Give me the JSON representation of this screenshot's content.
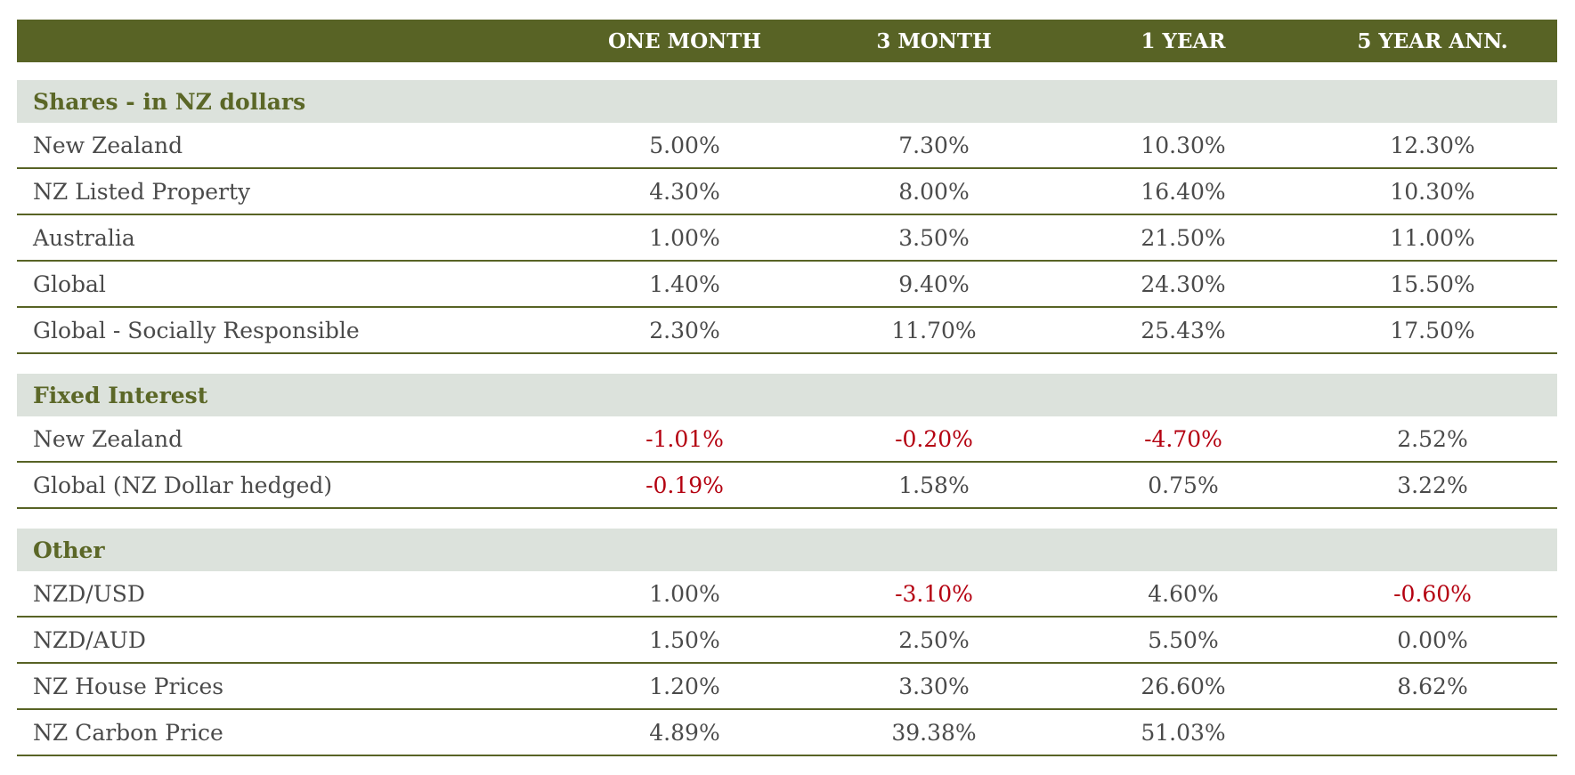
{
  "header": {
    "label": "",
    "columns": [
      "ONE MONTH",
      "3 MONTH",
      "1 YEAR",
      "5 YEAR ANN."
    ]
  },
  "sections": [
    {
      "title": "Shares - in NZ dollars",
      "rows": [
        {
          "label": "New Zealand",
          "values": [
            "5.00%",
            "7.30%",
            "10.30%",
            "12.30%"
          ]
        },
        {
          "label": "NZ Listed Property",
          "values": [
            "4.30%",
            "8.00%",
            "16.40%",
            "10.30%"
          ]
        },
        {
          "label": "Australia",
          "values": [
            "1.00%",
            "3.50%",
            "21.50%",
            "11.00%"
          ]
        },
        {
          "label": "Global",
          "values": [
            "1.40%",
            "9.40%",
            "24.30%",
            "15.50%"
          ]
        },
        {
          "label": "Global - Socially Responsible",
          "values": [
            "2.30%",
            "11.70%",
            "25.43%",
            "17.50%"
          ]
        }
      ]
    },
    {
      "title": "Fixed Interest",
      "rows": [
        {
          "label": "New Zealand",
          "values": [
            "-1.01%",
            "-0.20%",
            "-4.70%",
            "2.52%"
          ]
        },
        {
          "label": "Global (NZ Dollar hedged)",
          "values": [
            "-0.19%",
            "1.58%",
            "0.75%",
            "3.22%"
          ]
        }
      ]
    },
    {
      "title": "Other",
      "rows": [
        {
          "label": "NZD/USD",
          "values": [
            "1.00%",
            "-3.10%",
            "4.60%",
            "-0.60%"
          ]
        },
        {
          "label": "NZD/AUD",
          "values": [
            "1.50%",
            "2.50%",
            "5.50%",
            "0.00%"
          ]
        },
        {
          "label": "NZ House Prices",
          "values": [
            "1.20%",
            "3.30%",
            "26.60%",
            "8.62%"
          ]
        },
        {
          "label": "NZ Carbon Price",
          "values": [
            "4.89%",
            "39.38%",
            "51.03%",
            ""
          ]
        }
      ]
    }
  ],
  "colors": {
    "header_bg": "#586325",
    "section_bg": "#dce2dc",
    "section_text": "#5b6727",
    "negative_text": "#b40010",
    "body_text": "#4a4a4a"
  }
}
